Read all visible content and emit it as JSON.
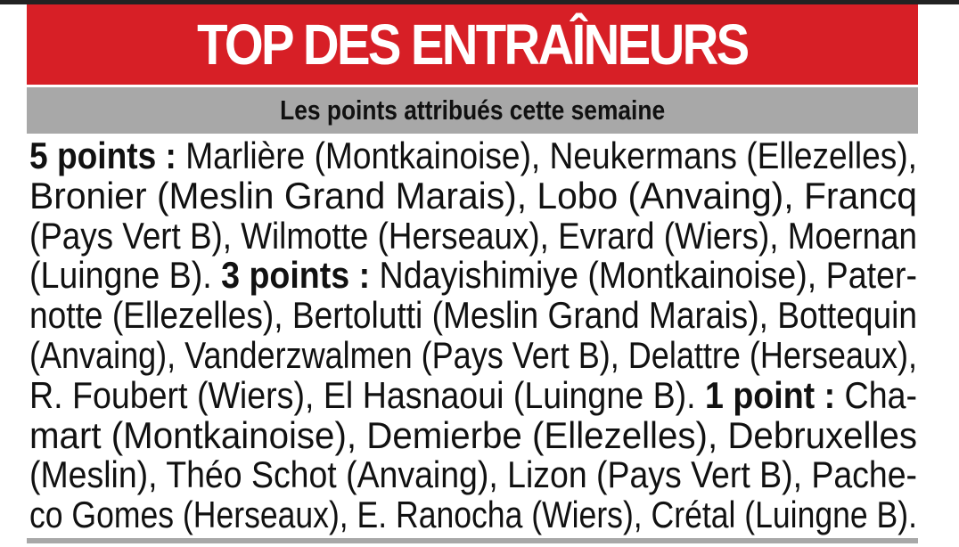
{
  "header": {
    "title": "TOP DES ENTRAÎNEURS",
    "subtitle": "Les points attribués cette semaine"
  },
  "lines": [
    [
      {
        "text": "5 points :",
        "bold": true
      },
      {
        "text": " Marlière (Montkainoise), Neukermans (Ellezelles),",
        "bold": false
      }
    ],
    [
      {
        "text": "Bronier (Meslin Grand Marais), Lobo (Anvaing), Francq",
        "bold": false
      }
    ],
    [
      {
        "text": "(Pays Vert B), Wilmotte (Herseaux), Evrard (Wiers), Moernan",
        "bold": false
      }
    ],
    [
      {
        "text": "(Luingne B). ",
        "bold": false
      },
      {
        "text": "3 points :",
        "bold": true
      },
      {
        "text": " Ndayishimiye (Montkainoise), Pater-",
        "bold": false
      }
    ],
    [
      {
        "text": "notte (Ellezelles), Bertolutti (Meslin Grand Marais), Bottequin",
        "bold": false
      }
    ],
    [
      {
        "text": "(Anvaing), Vanderzwalmen (Pays Vert B), Delattre (Herseaux),",
        "bold": false
      }
    ],
    [
      {
        "text": "R. Foubert (Wiers), El Hasnaoui (Luingne B). ",
        "bold": false
      },
      {
        "text": "1 point :",
        "bold": true
      },
      {
        "text": " Cha-",
        "bold": false
      }
    ],
    [
      {
        "text": "mart (Montkainoise), Demierbe (Ellezelles), Debruxelles",
        "bold": false
      }
    ],
    [
      {
        "text": "(Meslin), Théo Schot (Anvaing), Lizon (Pays Vert B), Pache-",
        "bold": false
      }
    ],
    [
      {
        "text": "co Gomes (Herseaux), E. Ranocha (Wiers), Crétal (Luingne B).",
        "bold": false
      }
    ]
  ]
}
